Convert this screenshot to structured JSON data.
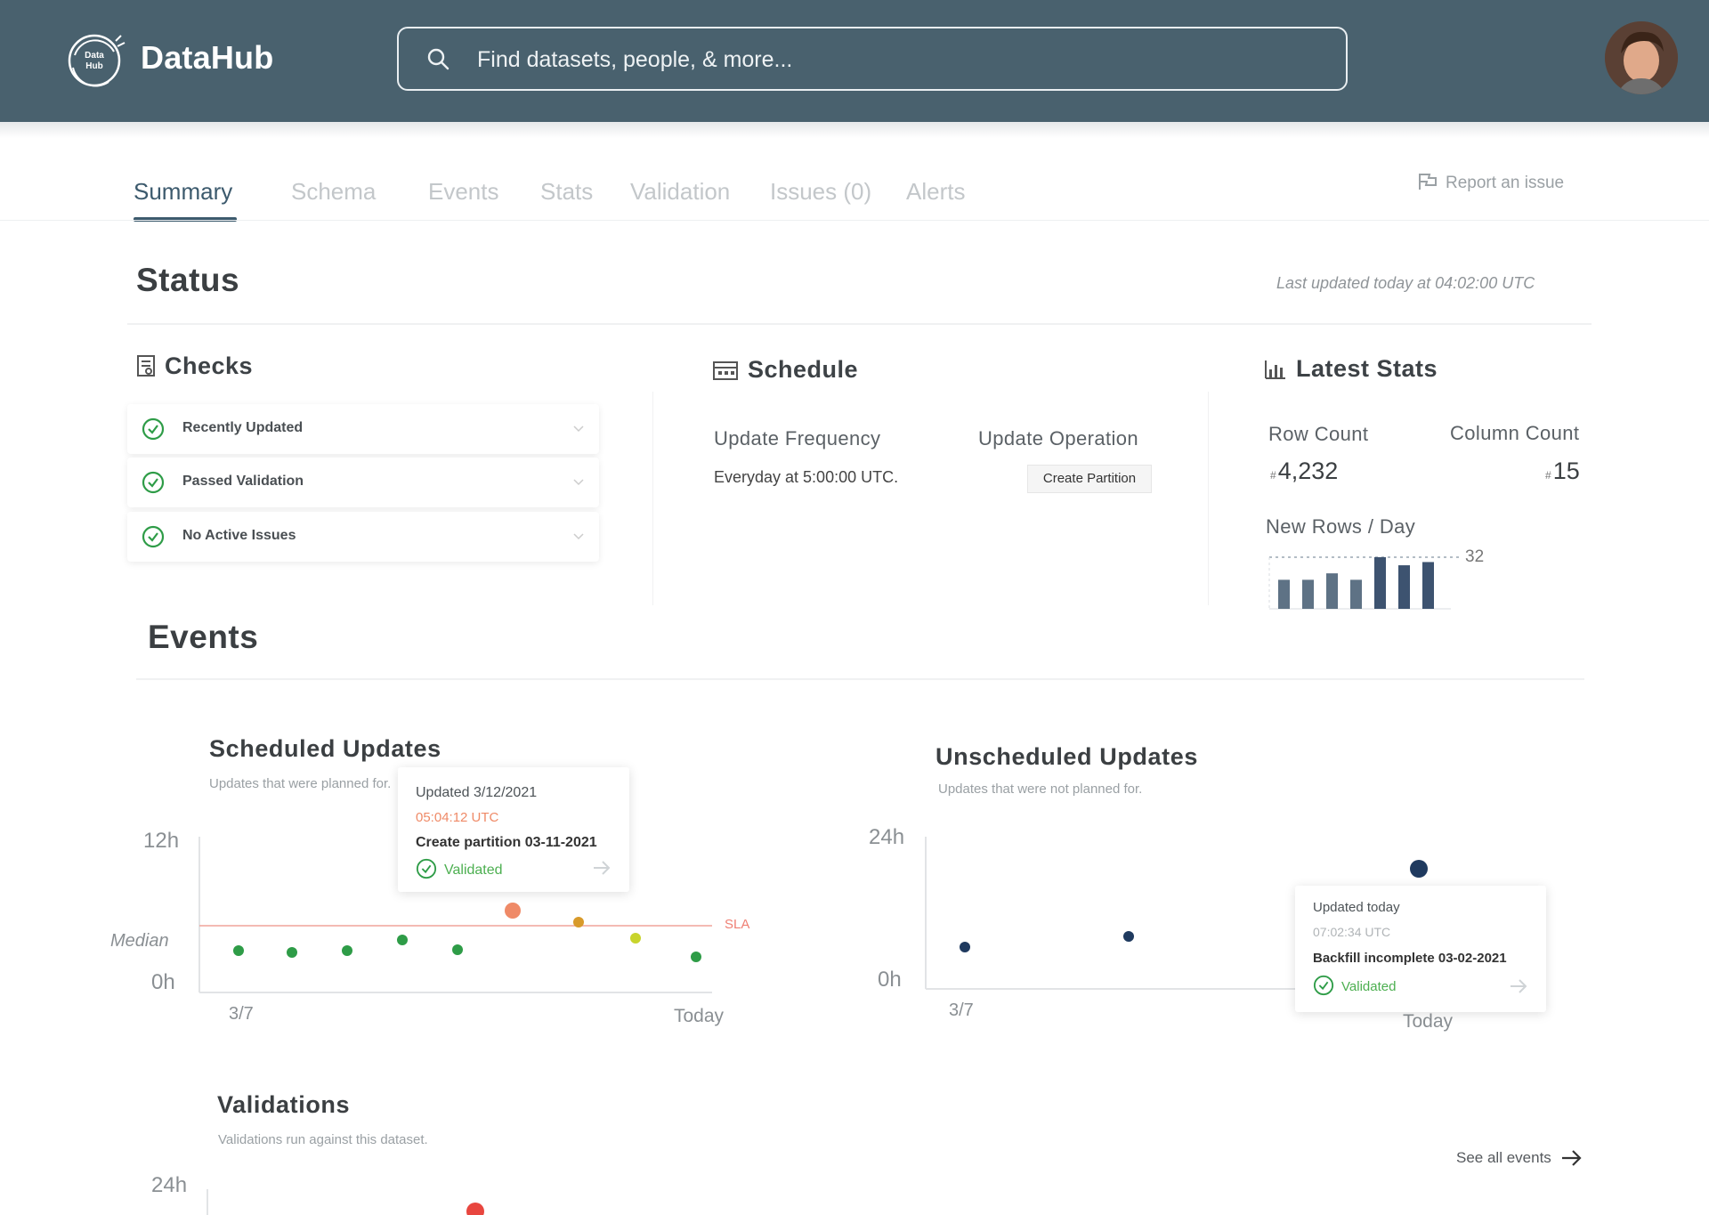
{
  "header": {
    "brand": "DataHub",
    "logo_icon": "datahub-logo-icon",
    "logo_text": "Data Hub",
    "search_placeholder": "Find datasets, people, & more...",
    "bg_color": "#49616e"
  },
  "tabs": [
    {
      "label": "Summary",
      "active": true
    },
    {
      "label": "Schema",
      "active": false
    },
    {
      "label": "Events",
      "active": false
    },
    {
      "label": "Stats",
      "active": false
    },
    {
      "label": "Validation",
      "active": false
    },
    {
      "label": "Issues (0)",
      "active": false
    },
    {
      "label": "Alerts",
      "active": false
    }
  ],
  "report_issue": "Report an issue",
  "status": {
    "title": "Status",
    "last_updated": "Last updated today at 04:02:00 UTC",
    "checks": {
      "title": "Checks",
      "items": [
        "Recently Updated",
        "Passed Validation",
        "No Active Issues"
      ]
    },
    "schedule": {
      "title": "Schedule",
      "frequency_label": "Update Frequency",
      "frequency_value": "Everyday at 5:00:00 UTC.",
      "operation_label": "Update Operation",
      "operation_value": "Create Partition"
    },
    "latest_stats": {
      "title": "Latest Stats",
      "row_count_label": "Row Count",
      "row_count_value": "4,232",
      "row_count_prefix": "#",
      "column_count_label": "Column Count",
      "column_count_value": "15",
      "column_count_prefix": "#",
      "new_rows_label": "New Rows / Day",
      "new_rows_max": "32"
    }
  },
  "events": {
    "title": "Events",
    "scheduled": {
      "title": "Scheduled Updates",
      "subtitle": "Updates that were planned for.",
      "y_top": "12h",
      "y_median": "Median",
      "y_bottom": "0h",
      "x_start": "3/7",
      "x_end": "Today",
      "sla_label": "SLA",
      "tooltip": {
        "line1": "Updated 3/12/2021",
        "line2": "05:04:12 UTC",
        "line3": "Create partition 03-11-2021",
        "status": "Validated"
      }
    },
    "unscheduled": {
      "title": "Unscheduled Updates",
      "subtitle": "Updates that were not planned for.",
      "y_top": "24h",
      "y_bottom": "0h",
      "x_start": "3/7",
      "x_end": "Today",
      "tooltip": {
        "line1": "Updated today",
        "line2": "07:02:34 UTC",
        "line3": "Backfill incomplete 03-02-2021",
        "status": "Validated"
      }
    },
    "validations": {
      "title": "Validations",
      "subtitle": "Validations run against this dataset.",
      "y_top": "24h"
    },
    "see_all": "See all events"
  },
  "chart_data": [
    {
      "type": "bar",
      "title": "New Rows / Day",
      "values": [
        18,
        18,
        22,
        18,
        32,
        27,
        29
      ],
      "annotation": "32",
      "color": "#5e7285"
    },
    {
      "type": "scatter",
      "title": "Scheduled Updates",
      "ylabel": "",
      "ylim_labels": [
        "0h",
        "12h"
      ],
      "x_labels": [
        "3/7",
        "Today"
      ],
      "reference_line": {
        "label": "SLA",
        "color": "#ef7f73"
      },
      "points": [
        {
          "status": "on-time",
          "color": "#2e9c47"
        },
        {
          "status": "on-time",
          "color": "#2e9c47"
        },
        {
          "status": "on-time",
          "color": "#2e9c47"
        },
        {
          "status": "on-time",
          "color": "#2e9c47"
        },
        {
          "status": "on-time",
          "color": "#2e9c47"
        },
        {
          "status": "late",
          "color": "#ef8a67"
        },
        {
          "status": "late",
          "color": "#d89a2a"
        },
        {
          "status": "warning",
          "color": "#c8d42c"
        },
        {
          "status": "on-time",
          "color": "#2e9c47"
        }
      ]
    },
    {
      "type": "scatter",
      "title": "Unscheduled Updates",
      "ylim_labels": [
        "0h",
        "24h"
      ],
      "x_labels": [
        "3/7",
        "Today"
      ],
      "points_color": "#1f3a5f"
    }
  ]
}
